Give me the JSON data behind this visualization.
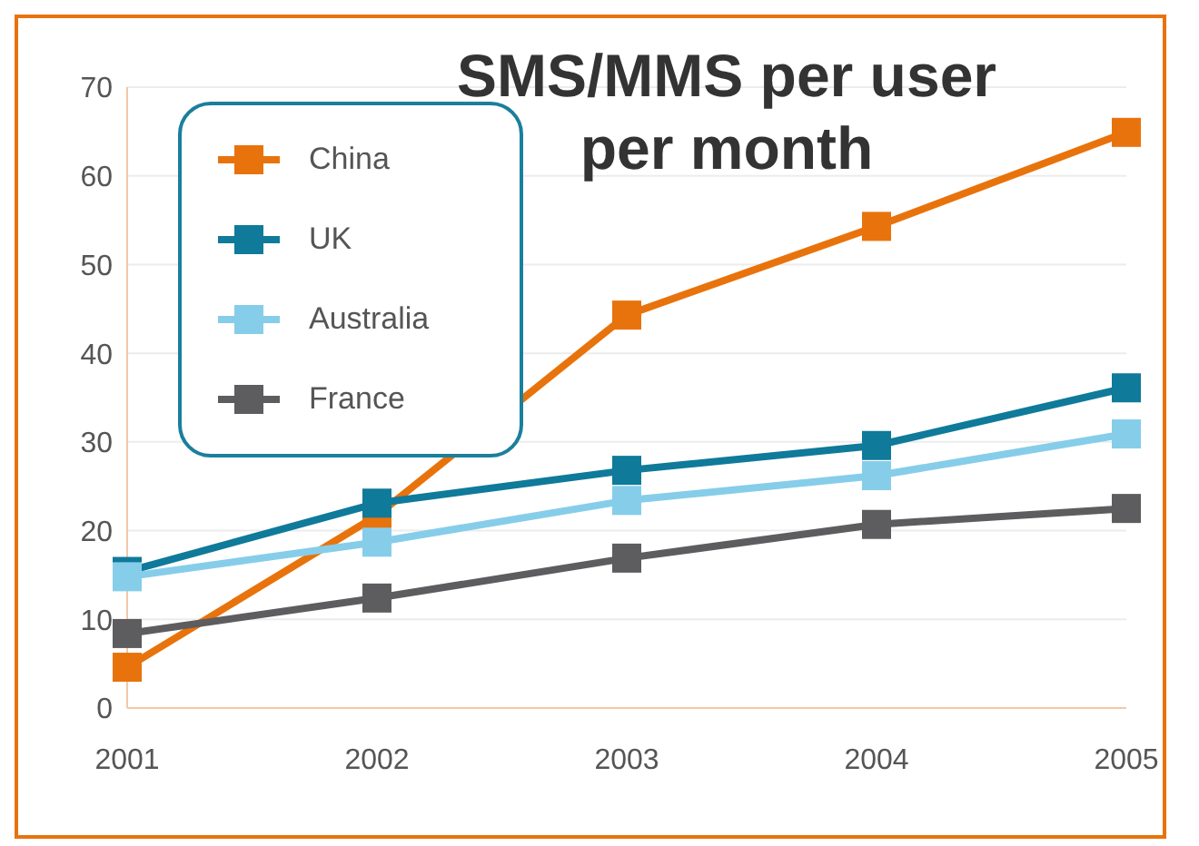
{
  "chart_data": {
    "type": "line",
    "title": "SMS/MMS per user per month",
    "categories": [
      "2001",
      "2002",
      "2003",
      "2004",
      "2005"
    ],
    "series": [
      {
        "name": "China",
        "color": "#e8730c",
        "values": [
          4.6,
          21.7,
          44.3,
          54.3,
          64.9
        ]
      },
      {
        "name": "UK",
        "color": "#0f7a9a",
        "values": [
          15.4,
          23.1,
          26.8,
          29.6,
          36.1
        ]
      },
      {
        "name": "Australia",
        "color": "#86cdea",
        "values": [
          14.8,
          18.7,
          23.4,
          26.2,
          30.9
        ]
      },
      {
        "name": "France",
        "color": "#5d5d5f",
        "values": [
          8.4,
          12.4,
          16.9,
          20.7,
          22.5
        ]
      }
    ],
    "ylim": [
      0,
      70
    ],
    "yticks": [
      0,
      10,
      20,
      30,
      40,
      50,
      60,
      70
    ],
    "grid": "y",
    "legend": "top left",
    "marker": "square",
    "line_style": "solid"
  }
}
